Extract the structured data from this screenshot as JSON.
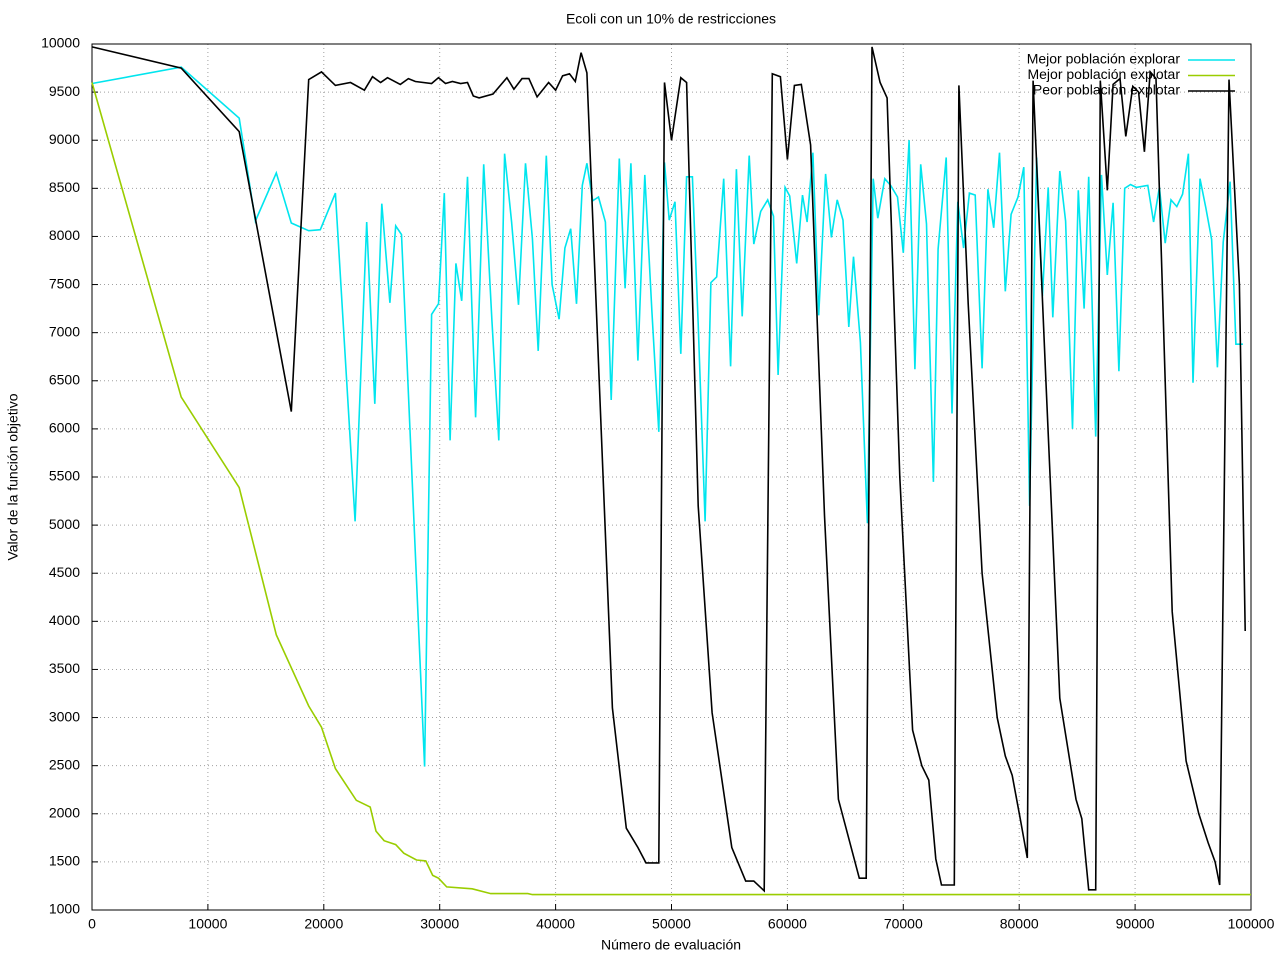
{
  "chart_data": {
    "type": "line",
    "title": "Ecoli con un 10% de restricciones",
    "x_label": "Número de evaluación",
    "y_label": "Valor de la función objetivo",
    "xlim": [
      0,
      100000
    ],
    "ylim": [
      1000,
      10000
    ],
    "xticks": [
      0,
      10000,
      20000,
      30000,
      40000,
      50000,
      60000,
      70000,
      80000,
      90000,
      100000
    ],
    "yticks": [
      1000,
      1500,
      2000,
      2500,
      3000,
      3500,
      4000,
      4500,
      5000,
      5500,
      6000,
      6500,
      7000,
      7500,
      8000,
      8500,
      9000,
      9500,
      10000
    ],
    "grid": true,
    "legend": "top-right",
    "series": [
      {
        "name": "Mejor población explorar",
        "color": "#00e5ee",
        "x": [
          0,
          7700,
          12700,
          14100,
          15900,
          17200,
          18700,
          19700,
          21000,
          22700,
          23700,
          24400,
          25000,
          25700,
          26200,
          26700,
          28700,
          29300,
          29900,
          30400,
          30900,
          31400,
          31900,
          32400,
          33100,
          33800,
          34500,
          35100,
          35600,
          36200,
          36800,
          37400,
          38000,
          38500,
          39200,
          39700,
          40300,
          40800,
          41300,
          41800,
          42300,
          42700,
          43200,
          43700,
          44300,
          44800,
          45500,
          46000,
          46500,
          47100,
          47700,
          48300,
          48900,
          49400,
          49800,
          50300,
          50800,
          51300,
          51800,
          52300,
          52900,
          53400,
          53900,
          54500,
          55100,
          55600,
          56100,
          56700,
          57100,
          57700,
          58300,
          58800,
          59200,
          59800,
          60200,
          60800,
          61300,
          61700,
          62200,
          62700,
          63300,
          63800,
          64300,
          64800,
          65300,
          65700,
          66300,
          66900,
          67400,
          67800,
          68400,
          68900,
          69500,
          70000,
          70500,
          71000,
          71500,
          72000,
          72600,
          73000,
          73700,
          74200,
          74700,
          75200,
          75700,
          76200,
          76800,
          77300,
          77800,
          78300,
          78800,
          79300,
          79900,
          80400,
          80900,
          81500,
          82000,
          82500,
          82900,
          83500,
          84000,
          84600,
          85100,
          85600,
          86000,
          86600,
          87100,
          87600,
          88100,
          88600,
          89100,
          89600,
          90100,
          91100,
          91600,
          92100,
          92600,
          93100,
          93600,
          94100,
          94600,
          95000,
          95600,
          96100,
          96600,
          97100,
          97600,
          98200,
          98700,
          99300
        ],
        "values": [
          9590,
          9760,
          9230,
          8160,
          8660,
          8140,
          8060,
          8070,
          8450,
          5040,
          8150,
          6260,
          8340,
          7310,
          8110,
          8020,
          2490,
          7190,
          7300,
          8450,
          5880,
          7720,
          7330,
          8620,
          6120,
          8750,
          7130,
          5880,
          8860,
          8150,
          7290,
          8760,
          7980,
          6810,
          8840,
          7500,
          7140,
          7880,
          8080,
          7300,
          8530,
          8760,
          8370,
          8410,
          8150,
          6300,
          8810,
          7460,
          8760,
          6710,
          8640,
          7240,
          5970,
          8770,
          8170,
          8360,
          6780,
          8620,
          8620,
          7090,
          5040,
          7520,
          7580,
          8600,
          6650,
          8700,
          7170,
          8840,
          7920,
          8260,
          8380,
          8210,
          6560,
          8510,
          8420,
          7720,
          8430,
          8150,
          8870,
          7180,
          8650,
          7990,
          8380,
          8170,
          7060,
          7790,
          6900,
          5020,
          8600,
          8190,
          8600,
          8530,
          8410,
          7830,
          9000,
          6620,
          8750,
          8130,
          5450,
          7870,
          8820,
          6160,
          8360,
          7880,
          8450,
          8430,
          6630,
          8490,
          8090,
          8870,
          7430,
          8230,
          8410,
          8720,
          5200,
          8820,
          7380,
          8510,
          7160,
          8680,
          8160,
          6000,
          8480,
          7250,
          8620,
          5920,
          8640,
          7600,
          8350,
          6600,
          8500,
          8540,
          8510,
          8530,
          8150,
          8510,
          7930,
          8380,
          8310,
          8440,
          8860,
          6480,
          8600,
          8300,
          7970,
          6640,
          7940,
          8570,
          6880,
          6880
        ]
      },
      {
        "name": "Mejor población explotar",
        "color": "#9acd00",
        "x": [
          0,
          7700,
          12700,
          15900,
          18700,
          19800,
          21000,
          22800,
          24000,
          24500,
          25200,
          26200,
          26900,
          28000,
          28800,
          29400,
          29900,
          30600,
          32800,
          34400,
          37600,
          38000,
          100000
        ],
        "values": [
          9600,
          6330,
          5390,
          3860,
          3120,
          2900,
          2470,
          2140,
          2070,
          1820,
          1720,
          1680,
          1590,
          1520,
          1510,
          1360,
          1330,
          1240,
          1220,
          1170,
          1170,
          1160,
          1160
        ]
      },
      {
        "name": "Peor población explotar",
        "color": "#000000",
        "x": [
          0,
          7700,
          12700,
          17200,
          18700,
          19800,
          21000,
          22300,
          23500,
          24200,
          24900,
          25500,
          26600,
          27300,
          27900,
          29300,
          29900,
          30500,
          31100,
          31800,
          32400,
          32900,
          33400,
          34600,
          35800,
          36400,
          37100,
          37700,
          38400,
          39400,
          40000,
          40600,
          41200,
          41700,
          42200,
          42700,
          43800,
          44900,
          46100,
          47100,
          47800,
          48900,
          49400,
          50000,
          50800,
          51300,
          52300,
          53500,
          55200,
          56400,
          57100,
          58000,
          58700,
          59400,
          60000,
          60600,
          61200,
          62000,
          63200,
          64400,
          66200,
          66800,
          67300,
          68000,
          68600,
          69700,
          70800,
          71600,
          72200,
          72800,
          73300,
          74400,
          74800,
          75600,
          76800,
          78100,
          78800,
          79400,
          80100,
          80700,
          81200,
          82300,
          83500,
          84900,
          85400,
          86000,
          86600,
          87000,
          87600,
          88100,
          88700,
          89200,
          89800,
          90300,
          90800,
          91300,
          91800,
          93200,
          94400,
          95500,
          96300,
          96900,
          97300,
          98100,
          99000,
          99500
        ],
        "values": [
          9970,
          9750,
          9090,
          6180,
          9630,
          9710,
          9570,
          9600,
          9520,
          9660,
          9600,
          9650,
          9580,
          9640,
          9610,
          9590,
          9650,
          9590,
          9610,
          9590,
          9600,
          9460,
          9440,
          9480,
          9650,
          9530,
          9640,
          9640,
          9450,
          9600,
          9520,
          9670,
          9690,
          9610,
          9910,
          9700,
          6400,
          3100,
          1850,
          1650,
          1490,
          1490,
          9600,
          9000,
          9650,
          9600,
          5200,
          3050,
          1650,
          1300,
          1300,
          1200,
          9690,
          9660,
          8800,
          9570,
          9580,
          8950,
          5100,
          2150,
          1330,
          1330,
          9970,
          9600,
          9440,
          5500,
          2870,
          2500,
          2350,
          1530,
          1260,
          1260,
          9570,
          7300,
          4500,
          3000,
          2600,
          2400,
          1940,
          1540,
          9620,
          6500,
          3200,
          2150,
          1950,
          1210,
          1210,
          9620,
          8480,
          9580,
          9640,
          9040,
          9560,
          9500,
          8880,
          9710,
          9640,
          4100,
          2550,
          2000,
          1700,
          1500,
          1260,
          9630,
          7500,
          3900
        ]
      }
    ]
  }
}
